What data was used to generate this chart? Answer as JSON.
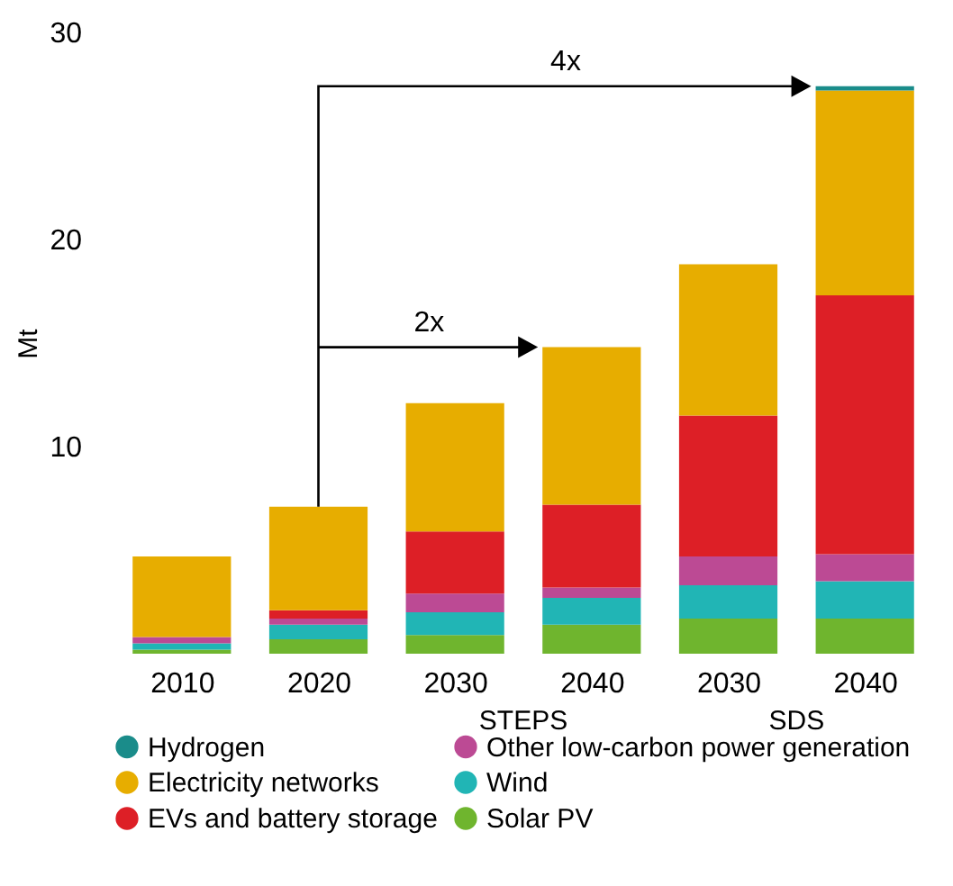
{
  "chart_data": {
    "type": "bar",
    "stacked": true,
    "ylabel": "Mt",
    "ylim": [
      0,
      30
    ],
    "yticks": [
      10,
      20,
      30
    ],
    "grid": false,
    "legend": "bottom",
    "categories": [
      "2010",
      "2020",
      "2030",
      "2040",
      "2030",
      "2040"
    ],
    "series": [
      {
        "name": "Solar PV",
        "color": "#6fb52e",
        "values": [
          0.2,
          0.7,
          0.9,
          1.4,
          1.7,
          1.7
        ]
      },
      {
        "name": "Wind",
        "color": "#21b5b5",
        "values": [
          0.3,
          0.7,
          1.1,
          1.3,
          1.6,
          1.8
        ]
      },
      {
        "name": "Other low-carbon power generation",
        "color": "#bc4a94",
        "values": [
          0.3,
          0.3,
          0.9,
          0.5,
          1.4,
          1.3
        ]
      },
      {
        "name": "EVs and battery storage",
        "color": "#dd1f26",
        "values": [
          0,
          0.4,
          3.0,
          4.0,
          6.8,
          12.5
        ]
      },
      {
        "name": "Electricity networks",
        "color": "#e7ad00",
        "values": [
          3.9,
          5.0,
          6.2,
          7.6,
          7.3,
          9.9
        ]
      },
      {
        "name": "Hydrogen",
        "color": "#1a8c8a",
        "values": [
          0,
          0,
          0,
          0,
          0,
          0.2
        ]
      }
    ],
    "annotations": [
      "2x",
      "4x",
      "STEPS",
      "SDS"
    ]
  }
}
